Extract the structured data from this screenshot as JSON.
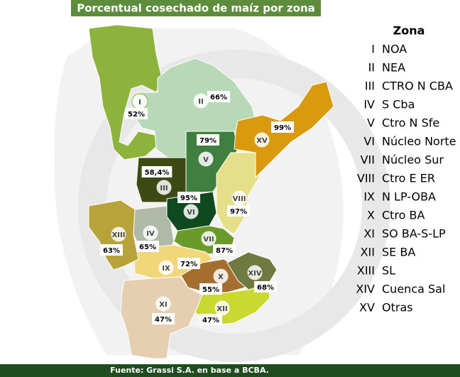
{
  "title": "Porcentual cosechado de maíz por zona",
  "legend_title": "Zona",
  "source": "Fuente: Grassi S.A. en base a BCBA.",
  "zones": [
    {
      "numeral": "I",
      "name": "NOA",
      "percent": "52%",
      "color": "#8cb43c"
    },
    {
      "numeral": "II",
      "name": "NEA",
      "percent": "66%",
      "color": "#b7d9b7"
    },
    {
      "numeral": "III",
      "name": "CTRO N CBA",
      "percent": "58,4%",
      "color": "#3d4a14"
    },
    {
      "numeral": "IV",
      "name": "S Cba",
      "percent": "65%",
      "color": "#b0b8a8"
    },
    {
      "numeral": "V",
      "name": "Ctro N Sfe",
      "percent": "79%",
      "color": "#3f7f3f"
    },
    {
      "numeral": "VI",
      "name": "Núcleo Norte",
      "percent": "95%",
      "color": "#0e4a1e"
    },
    {
      "numeral": "VII",
      "name": "Núcleo Sur",
      "percent": "87%",
      "color": "#6a9a2a"
    },
    {
      "numeral": "VIII",
      "name": "Ctro E ER",
      "percent": "97%",
      "color": "#e6df8a"
    },
    {
      "numeral": "IX",
      "name": "N LP-OBA",
      "percent": "72%",
      "color": "#f2d77a"
    },
    {
      "numeral": "X",
      "name": "Ctro BA",
      "percent": "55%",
      "color": "#a56d2e"
    },
    {
      "numeral": "XI",
      "name": "SO BA-S-LP",
      "percent": "47%",
      "color": "#e6cfb0"
    },
    {
      "numeral": "XII",
      "name": "SE BA",
      "percent": "47%",
      "color": "#c9d930"
    },
    {
      "numeral": "XIII",
      "name": "SL",
      "percent": "63%",
      "color": "#b8a23a"
    },
    {
      "numeral": "XIV",
      "name": "Cuenca Sal",
      "percent": "68%",
      "color": "#6e7a40"
    },
    {
      "numeral": "XV",
      "name": "Otras",
      "percent": "99%",
      "color": "#d99a10"
    }
  ]
}
